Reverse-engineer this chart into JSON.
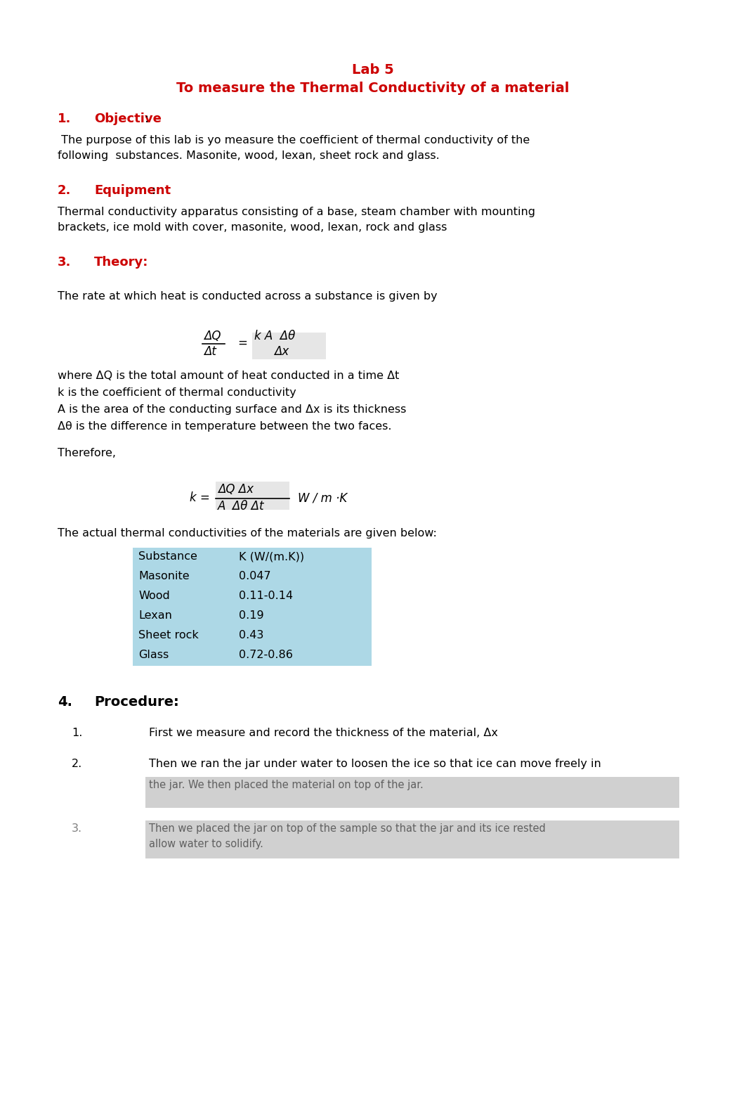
{
  "title_line1": "Lab 5",
  "title_line2": "To measure the Thermal Conductivity of a material",
  "title_color": "#CC0000",
  "background_color": "#FFFFFF",
  "section1_num": "1.",
  "section1_title": "Objective",
  "section1_colon": ":",
  "section1_body1": " The purpose of this lab is yo measure the coefficient of thermal conductivity of the",
  "section1_body2": "following  substances. Masonite, wood, lexan, sheet rock and glass.",
  "section2_num": "2.",
  "section2_title": "Equipment",
  "section2_colon": ":",
  "section2_body1": "Thermal conductivity apparatus consisting of a base, steam chamber with mounting",
  "section2_body2": "brackets, ice mold with cover, masonite, wood, lexan, rock and glass",
  "section3_num": "3.",
  "section3_title": "Theory:",
  "theory_intro": "The rate at which heat is conducted across a substance is given by",
  "eq1_num_left": "ΔQ",
  "eq1_den_left": "Δt",
  "eq1_equals": "=",
  "eq1_num_right": "k A  Δθ",
  "eq1_den_right": "Δx",
  "where_line1": "where ΔQ is the total amount of heat conducted in a time Δt",
  "where_line2": "k is the coefficient of thermal conductivity",
  "where_line3": "A is the area of the conducting surface and Δx is its thickness",
  "where_line4": "Δθ is the difference in temperature between the two faces.",
  "therefore_text": "Therefore,",
  "eq2_lhs": "k =",
  "eq2_num": "ΔQ Δx",
  "eq2_den": "A  Δθ Δt",
  "eq2_units": "W / m ·K",
  "conductivity_text": "The actual thermal conductivities of the materials are given below:",
  "table_header": [
    "Substance",
    "K (W/(m.K))"
  ],
  "table_data": [
    [
      "Masonite",
      "0.047"
    ],
    [
      "Wood",
      "0.11-0.14"
    ],
    [
      "Lexan",
      "0.19"
    ],
    [
      "Sheet rock",
      "0.43"
    ],
    [
      "Glass",
      "0.72-0.86"
    ]
  ],
  "table_bg": "#ADD8E6",
  "section4_num": "4.",
  "section4_title": "Procedure:",
  "proc1": "First we measure and record the thickness of the material, Δx",
  "proc2": "Then we ran the jar under water to loosen the ice so that ice can move freely in",
  "proc2b_text": "the jar. We then placed the material on top of the jar.",
  "proc3_text": "Then we placed the jar on top of the sample so that the jar and its ice rested\nallow water to solidify.",
  "proc3_line2": "allow water to solidify.",
  "red_color": "#CC0000",
  "black_color": "#000000",
  "font_size_title": 14,
  "font_size_section": 13,
  "font_size_body": 11.5,
  "font_size_eq": 12
}
